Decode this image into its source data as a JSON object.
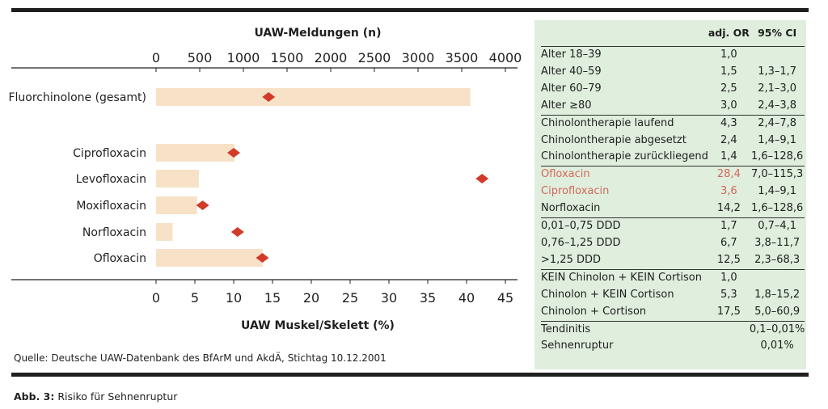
{
  "chart_data": {
    "type": "bar",
    "categories": [
      "Fluorchinolone (gesamt)",
      "Ciprofloxacin",
      "Levofloxacin",
      "Moxifloxacin",
      "Norfloxacin",
      "Ofloxacin"
    ],
    "series": [
      {
        "name": "UAW-Meldungen (n)",
        "marker": "bar",
        "axis": "top",
        "values": [
          3600,
          900,
          490,
          470,
          190,
          1220
        ]
      },
      {
        "name": "UAW Muskel/Skelett (%)",
        "marker": "diamond",
        "axis": "bottom",
        "values": [
          14.5,
          10.0,
          42.0,
          6.0,
          10.5,
          13.7
        ]
      }
    ],
    "top_axis": {
      "label": "UAW-Meldungen (n)",
      "ticks": [
        "0",
        "500",
        "1000",
        "1500",
        "2000",
        "2500",
        "3000",
        "3500",
        "4000"
      ],
      "range": [
        0,
        4000
      ]
    },
    "bottom_axis": {
      "label": "UAW Muskel/Skelett (%)",
      "ticks": [
        "0",
        "5",
        "10",
        "15",
        "20",
        "25",
        "30",
        "35",
        "40",
        "45"
      ],
      "range": [
        0,
        45
      ]
    },
    "colors": {
      "bar": "#f7e2c8",
      "diamond": "#d23b2a",
      "axis": "#222222"
    }
  },
  "source": "Quelle: Deutsche UAW-Datenbank des BfArM und AkdÄ, Stichtag 10.12.2001",
  "caption": {
    "label": "Abb. 3:",
    "text": " Risiko für Sehnenruptur"
  },
  "table": {
    "headers": {
      "label": "",
      "or": "adj. OR",
      "ci": "95% CI"
    },
    "groups": [
      {
        "rows": [
          {
            "label": "Alter 18–39",
            "or": "1,0",
            "ci": ""
          },
          {
            "label": "Alter 40–59",
            "or": "1,5",
            "ci": "1,3–1,7"
          },
          {
            "label": "Alter 60–79",
            "or": "2,5",
            "ci": "2,1–3,0"
          },
          {
            "label": "Alter ≥80",
            "or": "3,0",
            "ci": "2,4–3,8"
          }
        ]
      },
      {
        "rows": [
          {
            "label": "Chinolontherapie laufend",
            "or": "4,3",
            "ci": "2,4–7,8"
          },
          {
            "label": "Chinolontherapie abgesetzt",
            "or": "2,4",
            "ci": "1,4–9,1"
          },
          {
            "label": "Chinolontherapie zurückliegend",
            "or": "1,4",
            "ci": "1,6–128,6"
          }
        ]
      },
      {
        "rows": [
          {
            "label": "Ofloxacin",
            "or": "28,4",
            "ci": "7,0–115,3",
            "highlight": true
          },
          {
            "label": "Ciprofloxacin",
            "or": "3,6",
            "ci": "1,4–9,1",
            "highlight": true
          },
          {
            "label": "Norfloxacin",
            "or": "14,2",
            "ci": "1,6–128,6"
          }
        ]
      },
      {
        "rows": [
          {
            "label": "0,01–0,75 DDD",
            "or": "1,7",
            "ci": "0,7–4,1"
          },
          {
            "label": "0,76–1,25 DDD",
            "or": "6,7",
            "ci": "3,8–11,7"
          },
          {
            "label": ">1,25 DDD",
            "or": "12,5",
            "ci": "2,3–68,3"
          }
        ]
      },
      {
        "rows": [
          {
            "label": "KEIN Chinolon + KEIN Cortison",
            "or": "1,0",
            "ci": ""
          },
          {
            "label": "Chinolon + KEIN Cortison",
            "or": "5,3",
            "ci": "1,8–15,2"
          },
          {
            "label": "Chinolon + Cortison",
            "or": "17,5",
            "ci": "5,0–60,9"
          }
        ]
      },
      {
        "rows": [
          {
            "label": "Tendinitis",
            "or": "",
            "ci": "0,1–0,01%"
          },
          {
            "label": "Sehnenruptur",
            "or": "",
            "ci": "0,01%"
          }
        ]
      }
    ],
    "highlight_color": "#d4685a",
    "panel_color": "#dfeedd"
  }
}
